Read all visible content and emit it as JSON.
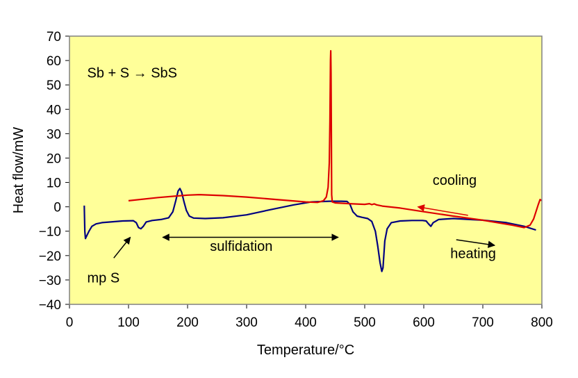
{
  "chart_data": {
    "type": "line",
    "xlabel": "Temperature/°C",
    "ylabel": "Heat flow/mW",
    "xlim": [
      0,
      800
    ],
    "ylim": [
      -40,
      70
    ],
    "x_ticks": [
      0,
      100,
      200,
      300,
      400,
      500,
      600,
      700,
      800
    ],
    "y_ticks": [
      -40,
      -30,
      -20,
      -10,
      0,
      10,
      20,
      30,
      40,
      50,
      60,
      70
    ],
    "grid": false,
    "background_color": "#ffff99",
    "series": [
      {
        "color": "#000080",
        "points": [
          [
            25,
            0.5
          ],
          [
            26,
            -10
          ],
          [
            27,
            -13
          ],
          [
            29,
            -12
          ],
          [
            33,
            -10
          ],
          [
            38,
            -8
          ],
          [
            45,
            -7
          ],
          [
            55,
            -6.5
          ],
          [
            70,
            -6.2
          ],
          [
            90,
            -5.8
          ],
          [
            108,
            -5.7
          ],
          [
            113,
            -6.5
          ],
          [
            117,
            -8.5
          ],
          [
            121,
            -9
          ],
          [
            125,
            -8
          ],
          [
            130,
            -6.2
          ],
          [
            140,
            -5.6
          ],
          [
            155,
            -5.2
          ],
          [
            168,
            -4.5
          ],
          [
            175,
            -2
          ],
          [
            180,
            2.5
          ],
          [
            184,
            6.5
          ],
          [
            187,
            7.5
          ],
          [
            190,
            6
          ],
          [
            194,
            2
          ],
          [
            198,
            -1.5
          ],
          [
            203,
            -3.8
          ],
          [
            210,
            -4.6
          ],
          [
            230,
            -4.8
          ],
          [
            260,
            -4.5
          ],
          [
            300,
            -3.3
          ],
          [
            340,
            -1.2
          ],
          [
            380,
            0.8
          ],
          [
            410,
            2.0
          ],
          [
            440,
            2.3
          ],
          [
            460,
            2.3
          ],
          [
            470,
            2.2
          ],
          [
            475,
            1
          ],
          [
            480,
            -2
          ],
          [
            487,
            -3.8
          ],
          [
            495,
            -4.3
          ],
          [
            505,
            -4.8
          ],
          [
            512,
            -6
          ],
          [
            518,
            -10
          ],
          [
            522,
            -16
          ],
          [
            526,
            -23
          ],
          [
            529,
            -26.5
          ],
          [
            531,
            -25
          ],
          [
            534,
            -14
          ],
          [
            538,
            -9
          ],
          [
            545,
            -6.5
          ],
          [
            560,
            -5.8
          ],
          [
            580,
            -5.6
          ],
          [
            598,
            -5.6
          ],
          [
            604,
            -5.8
          ],
          [
            608,
            -7
          ],
          [
            612,
            -8
          ],
          [
            616,
            -6.5
          ],
          [
            625,
            -5.2
          ],
          [
            650,
            -4.8
          ],
          [
            700,
            -5.5
          ],
          [
            740,
            -6.5
          ],
          [
            770,
            -8
          ],
          [
            790,
            -9.5
          ]
        ]
      },
      {
        "color": "#dd0000",
        "points": [
          [
            100,
            2.5
          ],
          [
            150,
            3.8
          ],
          [
            200,
            4.8
          ],
          [
            220,
            5.0
          ],
          [
            260,
            4.6
          ],
          [
            300,
            4.0
          ],
          [
            350,
            3.0
          ],
          [
            400,
            2.0
          ],
          [
            420,
            1.8
          ],
          [
            430,
            2.5
          ],
          [
            435,
            4
          ],
          [
            438,
            8
          ],
          [
            440,
            18
          ],
          [
            441,
            35
          ],
          [
            442,
            60
          ],
          [
            442.5,
            64
          ],
          [
            443,
            55
          ],
          [
            443.5,
            30
          ],
          [
            444,
            5
          ],
          [
            445,
            2
          ],
          [
            450,
            1.6
          ],
          [
            480,
            1.2
          ],
          [
            500,
            1.0
          ],
          [
            508,
            1.3
          ],
          [
            512,
            0.9
          ],
          [
            516,
            1.2
          ],
          [
            520,
            0.8
          ],
          [
            530,
            0.3
          ],
          [
            560,
            -0.5
          ],
          [
            600,
            -2
          ],
          [
            650,
            -3.8
          ],
          [
            700,
            -5.5
          ],
          [
            750,
            -7.5
          ],
          [
            770,
            -8.5
          ],
          [
            780,
            -7.5
          ],
          [
            786,
            -5
          ],
          [
            790,
            -2
          ],
          [
            794,
            1
          ],
          [
            797,
            3
          ],
          [
            800,
            2.5
          ]
        ]
      }
    ],
    "annotations": [
      {
        "text": "Sb + S → SbS",
        "x": 30,
        "y": 53
      },
      {
        "text": "cooling",
        "x": 615,
        "y": 9
      },
      {
        "text": "sulfidation",
        "x": 238,
        "y": -18
      },
      {
        "text": "heating",
        "x": 645,
        "y": -21
      },
      {
        "text": "mp S",
        "x": 30,
        "y": -31
      }
    ],
    "arrows": [
      {
        "name": "cooling-arrow",
        "color": "#dd0000",
        "from": [
          675,
          -3.5
        ],
        "to": [
          590,
          0
        ],
        "heads": "end"
      },
      {
        "name": "mp-s-arrow",
        "color": "#000000",
        "from": [
          75,
          -21
        ],
        "to": [
          103,
          -12.5
        ],
        "heads": "end"
      },
      {
        "name": "heating-arrow",
        "color": "#000000",
        "from": [
          655,
          -13.5
        ],
        "to": [
          720,
          -15.8
        ],
        "heads": "end"
      },
      {
        "name": "sulfidation-arrow",
        "color": "#000000",
        "from": [
          158,
          -12.5
        ],
        "to": [
          455,
          -12.5
        ],
        "heads": "both"
      }
    ]
  }
}
